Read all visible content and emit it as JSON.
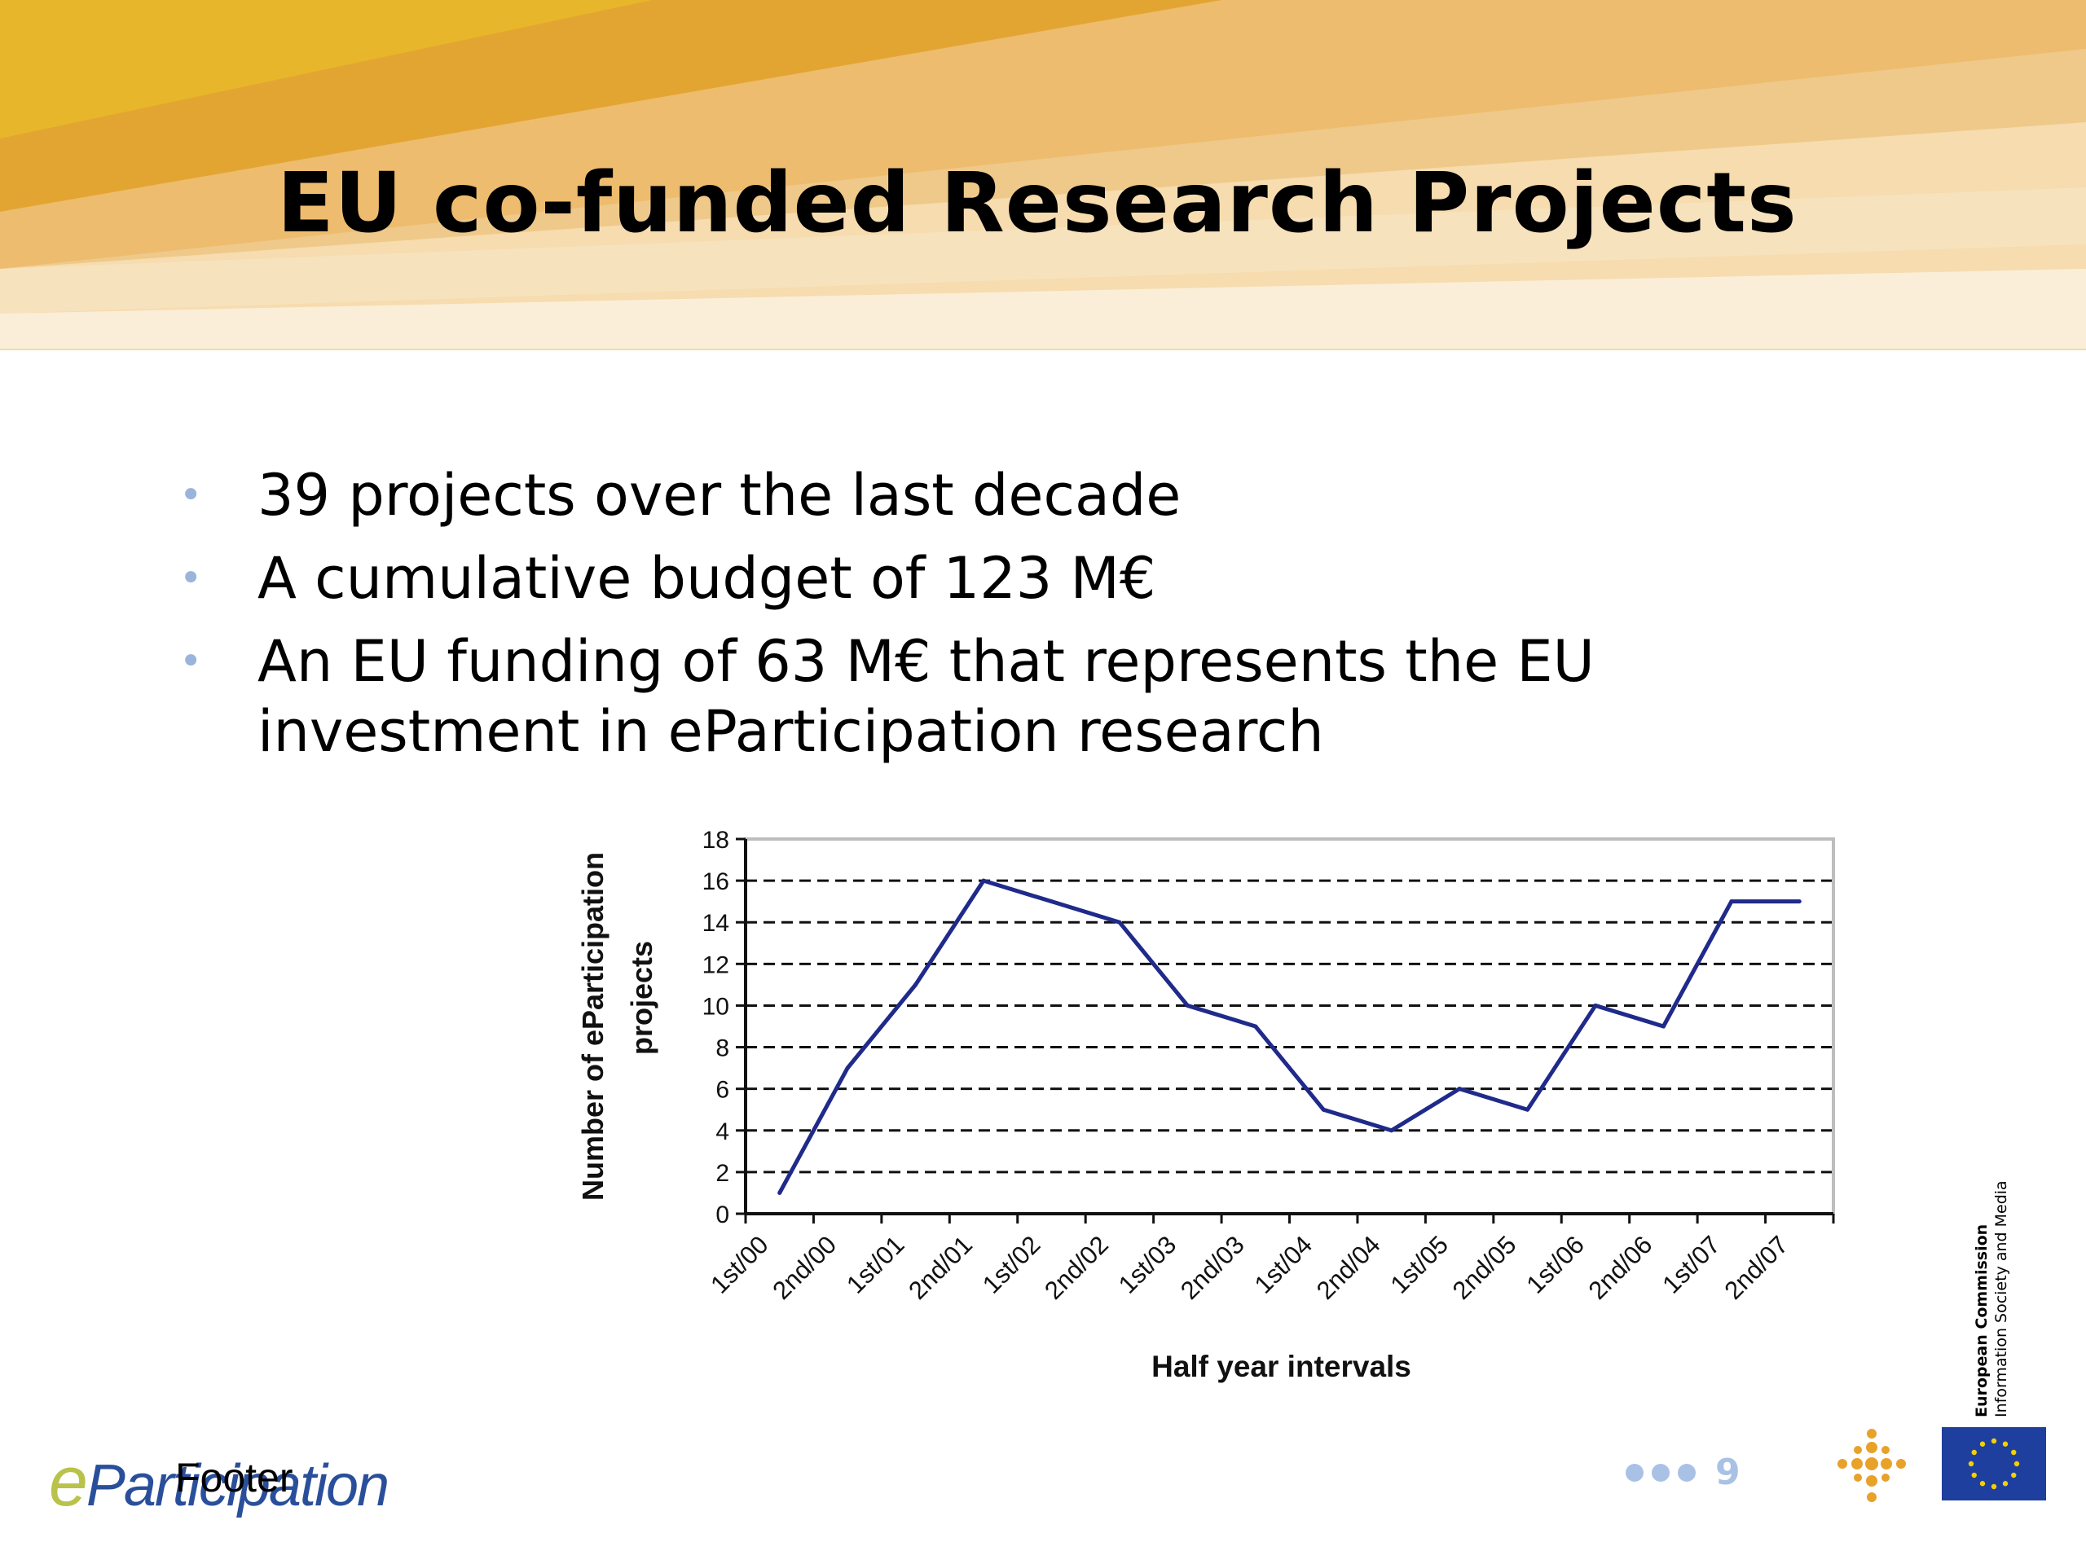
{
  "slide": {
    "title": "EU co-funded Research Projects",
    "bullets": [
      "39 projects over the last decade",
      "A cumulative budget of 123 M€",
      "An EU funding of 63 M€ that represents the EU investment in eParticipation research"
    ],
    "footer": "Footer",
    "logo_text": "eParticipation",
    "page_number": "9",
    "ec_line1": "European Commission",
    "ec_line2": "Information Society and Media"
  },
  "chart_data": {
    "type": "line",
    "categories": [
      "1st/00",
      "2nd/00",
      "1st/01",
      "2nd/01",
      "1st/02",
      "2nd/02",
      "1st/03",
      "2nd/03",
      "1st/04",
      "2nd/04",
      "1st/05",
      "2nd/05",
      "1st/06",
      "2nd/06",
      "1st/07",
      "2nd/07"
    ],
    "values": [
      1,
      7,
      11,
      16,
      15,
      14,
      10,
      9,
      5,
      4,
      6,
      5,
      10,
      9,
      15,
      15
    ],
    "ylabel": "Number of eParticipation projects",
    "xlabel": "Half year intervals",
    "ylim": [
      0,
      18
    ],
    "yticks": [
      0,
      2,
      4,
      6,
      8,
      10,
      12,
      14,
      16,
      18
    ],
    "grid": true,
    "line_color": "#1f2a8a"
  }
}
